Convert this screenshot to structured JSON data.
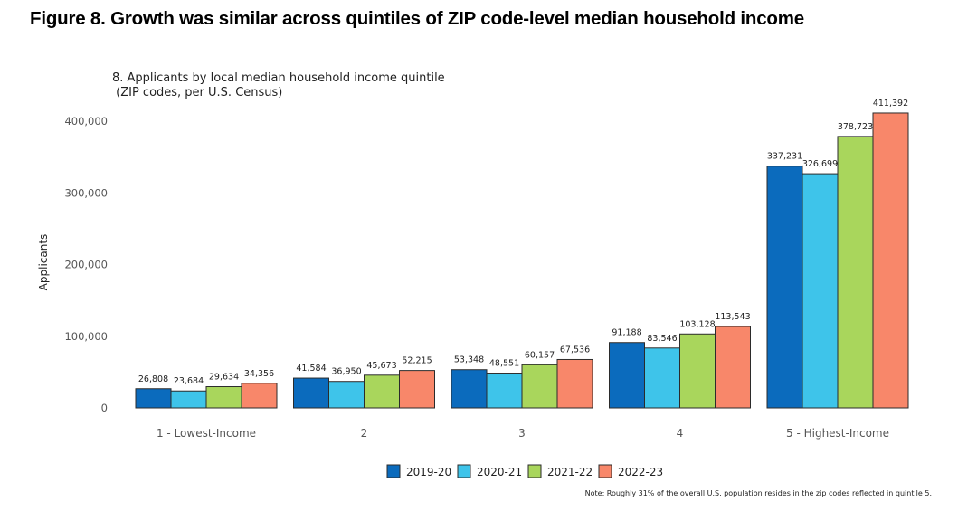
{
  "figure_title": "Figure 8. Growth was similar across quintiles of ZIP code-level median household income",
  "chart_data": {
    "type": "bar",
    "title_line1": "8. Applicants by local median household income quintile",
    "title_line2": " (ZIP codes, per U.S. Census)",
    "ylabel": "Applicants",
    "xlabel": "",
    "ylim": [
      0,
      420000
    ],
    "yticks": [
      0,
      100000,
      200000,
      300000,
      400000
    ],
    "ytick_labels": [
      "0",
      "100,000",
      "200,000",
      "300,000",
      "400,000"
    ],
    "categories": [
      "1 - Lowest-Income",
      "2",
      "3",
      "4",
      "5 - Highest-Income"
    ],
    "series": [
      {
        "name": "2019-20",
        "color": "#0b6bbd",
        "values": [
          26808,
          41584,
          53348,
          91188,
          337231
        ],
        "labels": [
          "26,808",
          "41,584",
          "53,348",
          "91,188",
          "337,231"
        ]
      },
      {
        "name": "2020-21",
        "color": "#3ec4ea",
        "values": [
          23684,
          36950,
          48551,
          83546,
          326699
        ],
        "labels": [
          "23,684",
          "36,950",
          "48,551",
          "83,546",
          "326,699"
        ]
      },
      {
        "name": "2021-22",
        "color": "#a9d65c",
        "values": [
          29634,
          45673,
          60157,
          103128,
          378723
        ],
        "labels": [
          "29,634",
          "45,673",
          "60,157",
          "103,128",
          "378,723"
        ]
      },
      {
        "name": "2022-23",
        "color": "#f8876a",
        "values": [
          34356,
          52215,
          67536,
          113543,
          411392
        ],
        "labels": [
          "34,356",
          "52,215",
          "67,536",
          "113,543",
          "411,392"
        ]
      }
    ],
    "legend_position": "bottom",
    "grid": false,
    "note": "Note: Roughly 31% of the overall U.S. population resides in the zip codes reflected in quintile 5."
  }
}
